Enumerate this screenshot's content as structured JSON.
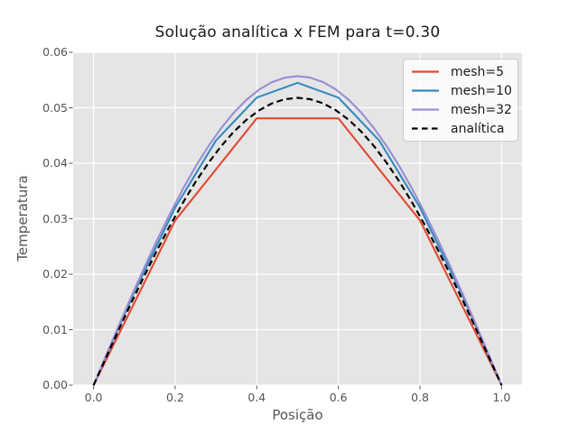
{
  "figure": {
    "title": "Solução analítica x FEM para t=0.30",
    "xlabel": "Posição",
    "ylabel": "Temperatura",
    "background": "#ffffff",
    "plot_background": "#e5e5e5",
    "grid_color": "#ffffff",
    "tick_color": "#555555",
    "label_color": "#555555"
  },
  "legend": {
    "position": "upper right",
    "background": "rgba(255,255,255,0.8)",
    "border_color": "#cccccc",
    "entries": [
      {
        "label": "mesh=5",
        "color": "#e24a33",
        "style": "solid"
      },
      {
        "label": "mesh=10",
        "color": "#348abd",
        "style": "solid"
      },
      {
        "label": "mesh=32",
        "color": "#988ed5",
        "style": "solid"
      },
      {
        "label": "analítica",
        "color": "#000000",
        "style": "dashed"
      }
    ]
  },
  "chart_data": {
    "type": "line",
    "title": "Solução analítica x FEM para t=0.30",
    "xlabel": "Posição",
    "ylabel": "Temperatura",
    "xlim": [
      -0.05,
      1.05
    ],
    "ylim": [
      0,
      0.06
    ],
    "xticks": [
      0.0,
      0.2,
      0.4,
      0.6,
      0.8,
      1.0
    ],
    "xtick_labels": [
      "0.0",
      "0.2",
      "0.4",
      "0.6",
      "0.8",
      "1.0"
    ],
    "yticks": [
      0.0,
      0.01,
      0.02,
      0.03,
      0.04,
      0.05,
      0.06
    ],
    "ytick_labels": [
      "0.00",
      "0.01",
      "0.02",
      "0.03",
      "0.04",
      "0.05",
      "0.06"
    ],
    "grid": true,
    "legend_position": "upper right",
    "series": [
      {
        "name": "mesh=5",
        "color": "#e24a33",
        "style": "solid",
        "x": [
          0,
          0.2,
          0.4,
          0.6,
          0.8,
          1
        ],
        "y": [
          0,
          0.0297,
          0.0481,
          0.0481,
          0.0297,
          0
        ]
      },
      {
        "name": "mesh=10",
        "color": "#348abd",
        "style": "solid",
        "x": [
          0,
          0.1,
          0.2,
          0.3,
          0.4,
          0.5,
          0.6,
          0.7,
          0.8,
          0.9,
          1
        ],
        "y": [
          0,
          0.016841,
          0.032034,
          0.044091,
          0.051833,
          0.0545,
          0.051833,
          0.044091,
          0.032034,
          0.016841,
          0
        ]
      },
      {
        "name": "mesh=32",
        "color": "#988ed5",
        "style": "solid",
        "x": [
          0,
          0.03125,
          0.0625,
          0.09375,
          0.125,
          0.15625,
          0.1875,
          0.21875,
          0.25,
          0.28125,
          0.3125,
          0.34375,
          0.375,
          0.40625,
          0.4375,
          0.46875,
          0.5,
          0.53125,
          0.5625,
          0.59375,
          0.625,
          0.65625,
          0.6875,
          0.71875,
          0.75,
          0.78125,
          0.8125,
          0.84375,
          0.875,
          0.90625,
          0.9375,
          0.96875,
          1
        ],
        "y": [
          0,
          0.00546,
          0.010867,
          0.016169,
          0.021315,
          0.026257,
          0.030945,
          0.035336,
          0.039386,
          0.043057,
          0.046313,
          0.049123,
          0.05146,
          0.053302,
          0.05463,
          0.055432,
          0.0557,
          0.055432,
          0.05463,
          0.053302,
          0.05146,
          0.049123,
          0.046313,
          0.043057,
          0.039386,
          0.035336,
          0.030945,
          0.026257,
          0.021315,
          0.016169,
          0.010867,
          0.00546,
          0
        ]
      },
      {
        "name": "analítica",
        "color": "#000000",
        "style": "dashed",
        "x": [
          0,
          0.03125,
          0.0625,
          0.09375,
          0.125,
          0.15625,
          0.1875,
          0.21875,
          0.25,
          0.28125,
          0.3125,
          0.34375,
          0.375,
          0.40625,
          0.4375,
          0.46875,
          0.5,
          0.53125,
          0.5625,
          0.59375,
          0.625,
          0.65625,
          0.6875,
          0.71875,
          0.75,
          0.78125,
          0.8125,
          0.84375,
          0.875,
          0.90625,
          0.9375,
          0.96875,
          1
        ],
        "y": [
          0,
          0.005077,
          0.010106,
          0.015037,
          0.019823,
          0.024418,
          0.028778,
          0.032862,
          0.036628,
          0.040042,
          0.04307,
          0.045684,
          0.047857,
          0.049569,
          0.050805,
          0.051551,
          0.0518,
          0.051551,
          0.050805,
          0.049569,
          0.047857,
          0.045684,
          0.04307,
          0.040042,
          0.036628,
          0.032862,
          0.028778,
          0.024418,
          0.019823,
          0.015037,
          0.010106,
          0.005077,
          0
        ]
      }
    ]
  }
}
